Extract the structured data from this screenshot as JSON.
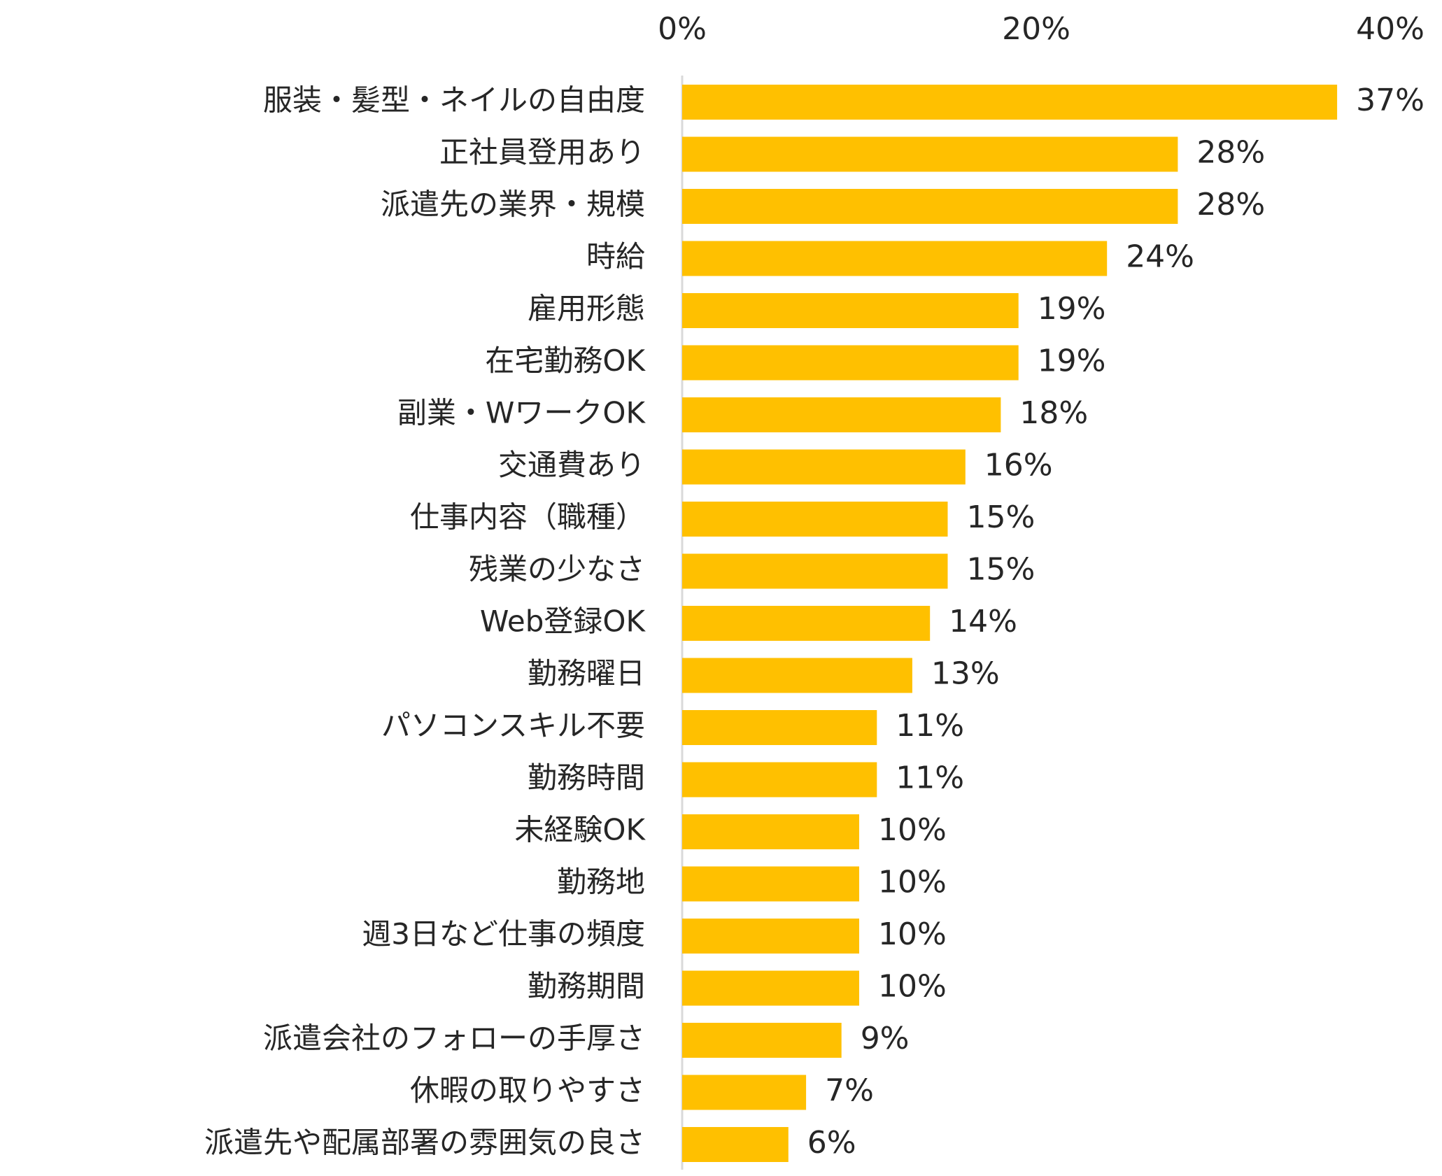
{
  "chart_data": {
    "type": "bar",
    "orientation": "horizontal",
    "title": "",
    "xlabel": "",
    "ylabel": "",
    "xlim": [
      0,
      40
    ],
    "ticks": [
      "0%",
      "20%",
      "40%"
    ],
    "tick_values": [
      0,
      20,
      40
    ],
    "bar_color": "#FFC000",
    "categories": [
      "服装・髪型・ネイルの自由度",
      "正社員登用あり",
      "派遣先の業界・規模",
      "時給",
      "雇用形態",
      "在宅勤務OK",
      "副業・WワークOK",
      "交通費あり",
      "仕事内容（職種）",
      "残業の少なさ",
      "Web登録OK",
      "勤務曜日",
      "パソコンスキル不要",
      "勤務時間",
      "未経験OK",
      "勤務地",
      "週3日など仕事の頻度",
      "勤務期間",
      "派遣会社のフォローの手厚さ",
      "休暇の取りやすさ",
      "派遣先や配属部署の雰囲気の良さ"
    ],
    "values": [
      37,
      28,
      28,
      24,
      19,
      19,
      18,
      16,
      15,
      15,
      14,
      13,
      11,
      11,
      10,
      10,
      10,
      10,
      9,
      7,
      6
    ],
    "value_labels": [
      "37%",
      "28%",
      "28%",
      "24%",
      "19%",
      "19%",
      "18%",
      "16%",
      "15%",
      "15%",
      "14%",
      "13%",
      "11%",
      "11%",
      "10%",
      "10%",
      "10%",
      "10%",
      "9%",
      "7%",
      "6%"
    ]
  }
}
